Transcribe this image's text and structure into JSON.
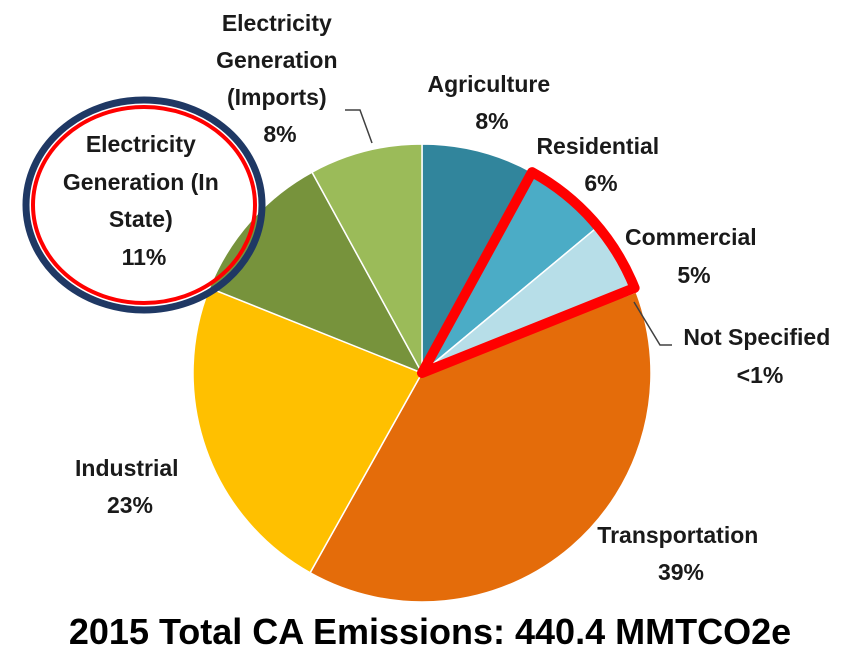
{
  "chart_data": {
    "type": "pie",
    "title": "2015 Total CA Emissions: 440.4 MMTCO2e",
    "slices": [
      {
        "name": "Agriculture",
        "value": 8,
        "label": "8%",
        "color": "#31859c"
      },
      {
        "name": "Residential",
        "value": 6,
        "label": "6%",
        "color": "#4bacc6"
      },
      {
        "name": "Commercial",
        "value": 5,
        "label": "5%",
        "color": "#b7dee8"
      },
      {
        "name": "Not Specified",
        "value": 0.3,
        "label": "<1%",
        "color": "#ffffff"
      },
      {
        "name": "Transportation",
        "value": 39,
        "label": "39%",
        "color": "#e46c0a"
      },
      {
        "name": "Industrial",
        "value": 23,
        "label": "23%",
        "color": "#ffc000"
      },
      {
        "name": "Electricity Generation (In State)",
        "value": 11,
        "label": "11%",
        "color": "#77933c"
      },
      {
        "name": "Electricity Generation (Imports)",
        "value": 8,
        "label": "8%",
        "color": "#9bbb59"
      }
    ],
    "labels": {
      "agriculture": [
        "Agriculture",
        "8%"
      ],
      "residential": [
        "Residential",
        "6%"
      ],
      "commercial": [
        "Commercial",
        "5%"
      ],
      "not_specified": [
        "Not Specified",
        "<1%"
      ],
      "transportation": [
        "Transportation",
        "39%"
      ],
      "industrial": [
        "Industrial",
        "23%"
      ],
      "elec_in_state": [
        "Electricity",
        "Generation (In",
        "State)",
        "11%"
      ],
      "elec_imports": [
        "Electricity",
        "Generation",
        "(Imports)",
        "8%"
      ]
    },
    "highlight": {
      "slices": [
        "Residential",
        "Commercial"
      ],
      "highlight_color": "#ff0000",
      "circled_label": "Electricity Generation (In State)",
      "circle_colors": [
        "#1f3864",
        "#ff0000"
      ]
    }
  }
}
